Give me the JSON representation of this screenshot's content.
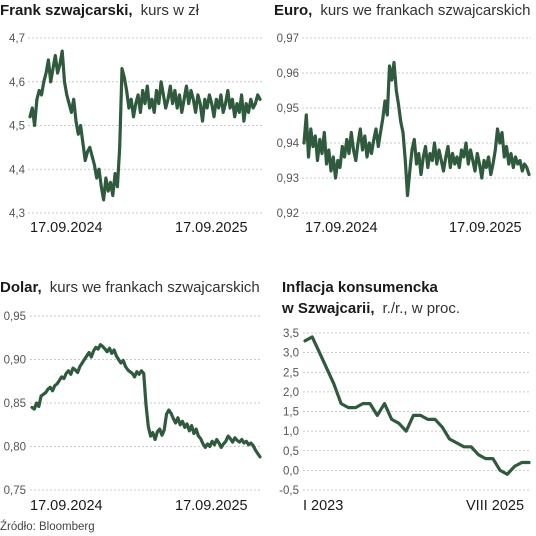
{
  "source": "Źródło: Bloomberg",
  "colors": {
    "line": "#2f5a3d",
    "grid": "#b9b9b9"
  },
  "chart_data": [
    {
      "id": "chf",
      "type": "line",
      "title_bold": "Frank szwajcarski,",
      "title_normal": "kurs w zł",
      "yticks": [
        "4,7",
        "4,6",
        "4,5",
        "4,4",
        "4,3"
      ],
      "ylim": [
        4.3,
        4.7
      ],
      "xlabels": [
        "17.09.2024",
        "17.09.2025"
      ],
      "x_range": [
        0,
        100
      ],
      "series": [
        {
          "x": [
            0,
            1,
            2,
            3,
            4,
            5,
            6,
            7,
            8,
            9,
            10,
            11,
            12,
            13,
            14,
            15,
            16,
            17,
            18,
            19,
            20,
            21,
            22,
            23,
            24,
            25,
            26,
            27,
            28,
            29,
            30,
            31,
            32,
            33,
            34,
            35,
            36,
            37,
            38,
            39,
            40,
            41,
            42,
            43,
            44,
            45,
            46,
            47,
            48,
            49,
            50,
            51,
            52,
            53,
            54,
            55,
            56,
            57,
            58,
            59,
            60,
            61,
            62,
            63,
            64,
            65,
            66,
            67,
            68,
            69,
            70,
            71,
            72,
            73,
            74,
            75,
            76,
            77,
            78,
            79,
            80,
            81,
            82,
            83,
            84,
            85,
            86,
            87,
            88,
            89,
            90,
            91,
            92,
            93,
            94,
            95,
            96,
            97,
            98,
            99,
            100
          ],
          "y": [
            4.52,
            4.54,
            4.5,
            4.56,
            4.58,
            4.57,
            4.6,
            4.62,
            4.65,
            4.6,
            4.63,
            4.66,
            4.62,
            4.64,
            4.67,
            4.6,
            4.57,
            4.55,
            4.53,
            4.56,
            4.51,
            4.48,
            4.5,
            4.46,
            4.42,
            4.44,
            4.45,
            4.43,
            4.41,
            4.38,
            4.4,
            4.36,
            4.33,
            4.38,
            4.35,
            4.37,
            4.34,
            4.39,
            4.36,
            4.45,
            4.63,
            4.61,
            4.58,
            4.54,
            4.56,
            4.52,
            4.55,
            4.57,
            4.53,
            4.58,
            4.55,
            4.59,
            4.54,
            4.56,
            4.53,
            4.58,
            4.55,
            4.6,
            4.57,
            4.54,
            4.56,
            4.59,
            4.55,
            4.58,
            4.54,
            4.57,
            4.53,
            4.56,
            4.59,
            4.55,
            4.58,
            4.56,
            4.53,
            4.57,
            4.55,
            4.51,
            4.56,
            4.54,
            4.57,
            4.55,
            4.52,
            4.56,
            4.54,
            4.57,
            4.53,
            4.55,
            4.58,
            4.54,
            4.56,
            4.52,
            4.55,
            4.53,
            4.57,
            4.51,
            4.55,
            4.53,
            4.56,
            4.54,
            4.55,
            4.57,
            4.56
          ]
        }
      ]
    },
    {
      "id": "eur",
      "type": "line",
      "title_bold": "Euro,",
      "title_normal": "kurs we frankach szwajcarskich",
      "yticks": [
        "0,97",
        "0,96",
        "0,95",
        "0,94",
        "0,93",
        "0,92"
      ],
      "ylim": [
        0.92,
        0.97
      ],
      "xlabels": [
        "17.09.2024",
        "17.09.2025"
      ],
      "x_range": [
        0,
        100
      ],
      "series": [
        {
          "x": [
            0,
            1,
            2,
            3,
            4,
            5,
            6,
            7,
            8,
            9,
            10,
            11,
            12,
            13,
            14,
            15,
            16,
            17,
            18,
            19,
            20,
            21,
            22,
            23,
            24,
            25,
            26,
            27,
            28,
            29,
            30,
            31,
            32,
            33,
            34,
            35,
            36,
            37,
            38,
            39,
            40,
            41,
            42,
            43,
            44,
            45,
            46,
            47,
            48,
            49,
            50,
            51,
            52,
            53,
            54,
            55,
            56,
            57,
            58,
            59,
            60,
            61,
            62,
            63,
            64,
            65,
            66,
            67,
            68,
            69,
            70,
            71,
            72,
            73,
            74,
            75,
            76,
            77,
            78,
            79,
            80,
            81,
            82,
            83,
            84,
            85,
            86,
            87,
            88,
            89,
            90,
            91,
            92,
            93,
            94,
            95,
            96,
            97,
            98,
            99,
            100
          ],
          "y": [
            0.94,
            0.948,
            0.936,
            0.944,
            0.939,
            0.942,
            0.935,
            0.941,
            0.937,
            0.943,
            0.934,
            0.938,
            0.932,
            0.936,
            0.93,
            0.935,
            0.933,
            0.939,
            0.936,
            0.941,
            0.937,
            0.943,
            0.938,
            0.935,
            0.94,
            0.944,
            0.938,
            0.942,
            0.936,
            0.94,
            0.937,
            0.941,
            0.944,
            0.939,
            0.943,
            0.947,
            0.952,
            0.948,
            0.962,
            0.958,
            0.963,
            0.955,
            0.951,
            0.946,
            0.943,
            0.935,
            0.925,
            0.932,
            0.938,
            0.941,
            0.934,
            0.937,
            0.931,
            0.936,
            0.939,
            0.933,
            0.937,
            0.935,
            0.94,
            0.934,
            0.938,
            0.935,
            0.932,
            0.936,
            0.939,
            0.933,
            0.937,
            0.934,
            0.936,
            0.933,
            0.938,
            0.936,
            0.94,
            0.934,
            0.938,
            0.935,
            0.932,
            0.937,
            0.934,
            0.93,
            0.935,
            0.933,
            0.936,
            0.931,
            0.934,
            0.938,
            0.944,
            0.94,
            0.943,
            0.936,
            0.939,
            0.934,
            0.937,
            0.933,
            0.936,
            0.934,
            0.935,
            0.932,
            0.934,
            0.933,
            0.931
          ]
        }
      ]
    },
    {
      "id": "usd",
      "type": "line",
      "title_bold": "Dolar,",
      "title_normal": "kurs we frankach szwajcarskich",
      "yticks": [
        "0,95",
        "0,90",
        "0,85",
        "0,80",
        "0,75"
      ],
      "ylim": [
        0.75,
        0.95
      ],
      "xlabels": [
        "17.09.2024",
        "17.09.2025"
      ],
      "x_range": [
        0,
        100
      ],
      "series": [
        {
          "x": [
            0,
            1,
            2,
            3,
            4,
            5,
            6,
            7,
            8,
            9,
            10,
            11,
            12,
            13,
            14,
            15,
            16,
            17,
            18,
            19,
            20,
            21,
            22,
            23,
            24,
            25,
            26,
            27,
            28,
            29,
            30,
            31,
            32,
            33,
            34,
            35,
            36,
            37,
            38,
            39,
            40,
            41,
            42,
            43,
            44,
            45,
            46,
            47,
            48,
            49,
            50,
            51,
            52,
            53,
            54,
            55,
            56,
            57,
            58,
            59,
            60,
            61,
            62,
            63,
            64,
            65,
            66,
            67,
            68,
            69,
            70,
            71,
            72,
            73,
            74,
            75,
            76,
            77,
            78,
            79,
            80,
            81,
            82,
            83,
            84,
            85,
            86,
            87,
            88,
            89,
            90,
            91,
            92,
            93,
            94,
            95,
            96,
            97,
            98,
            99,
            100
          ],
          "y": [
            0.845,
            0.843,
            0.85,
            0.846,
            0.858,
            0.86,
            0.862,
            0.866,
            0.868,
            0.864,
            0.87,
            0.872,
            0.876,
            0.88,
            0.878,
            0.884,
            0.887,
            0.883,
            0.89,
            0.888,
            0.885,
            0.892,
            0.896,
            0.9,
            0.904,
            0.908,
            0.903,
            0.91,
            0.914,
            0.912,
            0.917,
            0.915,
            0.912,
            0.909,
            0.913,
            0.907,
            0.911,
            0.904,
            0.9,
            0.896,
            0.899,
            0.892,
            0.888,
            0.886,
            0.884,
            0.88,
            0.886,
            0.883,
            0.887,
            0.884,
            0.848,
            0.823,
            0.812,
            0.816,
            0.808,
            0.817,
            0.82,
            0.813,
            0.819,
            0.837,
            0.842,
            0.838,
            0.832,
            0.827,
            0.833,
            0.825,
            0.829,
            0.822,
            0.826,
            0.818,
            0.824,
            0.815,
            0.82,
            0.812,
            0.809,
            0.803,
            0.799,
            0.803,
            0.8,
            0.806,
            0.802,
            0.808,
            0.804,
            0.799,
            0.803,
            0.806,
            0.812,
            0.809,
            0.805,
            0.81,
            0.807,
            0.805,
            0.808,
            0.804,
            0.806,
            0.802,
            0.804,
            0.801,
            0.796,
            0.792,
            0.788
          ]
        }
      ]
    },
    {
      "id": "cpi",
      "type": "line",
      "title_bold": "Inflacja konsumencka",
      "title_bold_line2": "w Szwajcarii,",
      "title_normal": "r./r., w proc.",
      "yticks": [
        "3,5",
        "3,0",
        "2,5",
        "2,0",
        "1,5",
        "1,0",
        "0,5",
        "0,0",
        "-0,5"
      ],
      "ylim": [
        -0.5,
        3.5
      ],
      "xlabels": [
        "I 2023",
        "VIII 2025"
      ],
      "x_range": [
        0,
        31
      ],
      "series": [
        {
          "x": [
            0,
            1,
            2,
            3,
            4,
            5,
            6,
            7,
            8,
            9,
            10,
            11,
            12,
            13,
            14,
            15,
            16,
            17,
            18,
            19,
            20,
            21,
            22,
            23,
            24,
            25,
            26,
            27,
            28,
            29,
            30,
            31
          ],
          "y": [
            3.3,
            3.4,
            3.0,
            2.6,
            2.2,
            1.7,
            1.6,
            1.6,
            1.7,
            1.7,
            1.4,
            1.7,
            1.3,
            1.2,
            1.0,
            1.4,
            1.4,
            1.3,
            1.3,
            1.1,
            0.8,
            0.7,
            0.6,
            0.6,
            0.4,
            0.3,
            0.3,
            0.0,
            -0.1,
            0.1,
            0.2,
            0.2
          ]
        }
      ]
    }
  ]
}
